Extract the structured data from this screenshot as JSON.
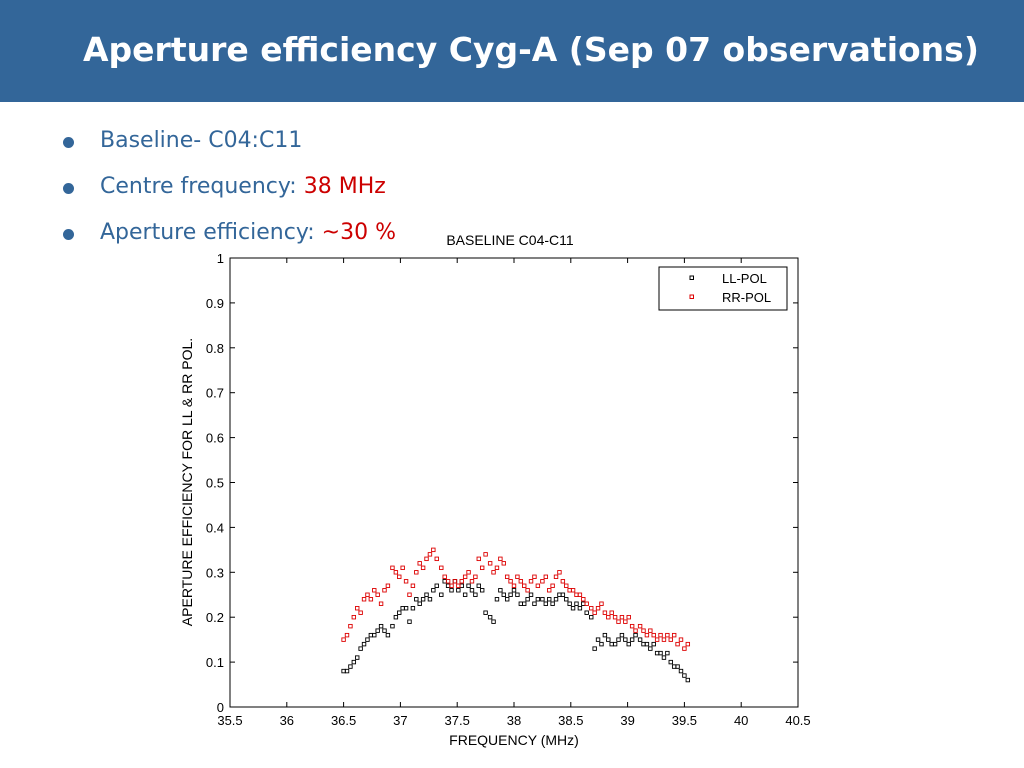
{
  "slide": {
    "title": "Aperture efficiency Cyg-A (Sep 07 observations)",
    "bullets": [
      {
        "label": "Baseline- C04:C11",
        "value": ""
      },
      {
        "label": "Centre frequency: ",
        "value": "38 MHz"
      },
      {
        "label": "Aperture efficiency: ",
        "value": "~30 %"
      }
    ]
  },
  "colors": {
    "header": "#336699",
    "text": "#336699",
    "highlight": "#cc0000",
    "ll": "#000000",
    "rr": "#dd0000"
  },
  "chart_data": {
    "type": "scatter",
    "title": "BASELINE C04-C11",
    "xlabel": "FREQUENCY (MHz)",
    "ylabel": "APERTURE EFFICIENCY FOR LL & RR POL.",
    "xlim": [
      35.5,
      40.5
    ],
    "ylim": [
      0,
      1
    ],
    "xticks": [
      35.5,
      36,
      36.5,
      37,
      37.5,
      38,
      38.5,
      39,
      39.5,
      40,
      40.5
    ],
    "yticks": [
      0,
      0.1,
      0.2,
      0.3,
      0.4,
      0.5,
      0.6,
      0.7,
      0.8,
      0.9,
      1
    ],
    "grid": false,
    "legend_position": "top-right",
    "series": [
      {
        "name": "LL-POL",
        "x": [
          36.5,
          36.53,
          36.56,
          36.59,
          36.62,
          36.65,
          36.68,
          36.71,
          36.74,
          36.77,
          36.8,
          36.83,
          36.86,
          36.89,
          36.93,
          36.96,
          36.99,
          37.02,
          37.05,
          37.08,
          37.11,
          37.14,
          37.17,
          37.2,
          37.23,
          37.26,
          37.29,
          37.32,
          37.36,
          37.39,
          37.42,
          37.45,
          37.48,
          37.51,
          37.54,
          37.57,
          37.6,
          37.63,
          37.66,
          37.69,
          37.72,
          37.75,
          37.79,
          37.82,
          37.85,
          37.88,
          37.91,
          37.94,
          37.97,
          38.0,
          38.03,
          38.06,
          38.09,
          38.12,
          38.15,
          38.18,
          38.21,
          38.25,
          38.28,
          38.31,
          38.34,
          38.37,
          38.4,
          38.43,
          38.46,
          38.49,
          38.52,
          38.55,
          38.58,
          38.61,
          38.64,
          38.68,
          38.71,
          38.74,
          38.77,
          38.8,
          38.83,
          38.86,
          38.89,
          38.92,
          38.95,
          38.98,
          39.01,
          39.04,
          39.07,
          39.11,
          39.14,
          39.17,
          39.2,
          39.23,
          39.26,
          39.29,
          39.32,
          39.35,
          39.38,
          39.41,
          39.44,
          39.47,
          39.5,
          39.53
        ],
        "y": [
          0.08,
          0.08,
          0.09,
          0.1,
          0.11,
          0.13,
          0.14,
          0.15,
          0.16,
          0.16,
          0.17,
          0.18,
          0.17,
          0.16,
          0.18,
          0.2,
          0.21,
          0.22,
          0.22,
          0.19,
          0.22,
          0.24,
          0.23,
          0.24,
          0.25,
          0.24,
          0.26,
          0.27,
          0.25,
          0.28,
          0.27,
          0.26,
          0.28,
          0.26,
          0.27,
          0.25,
          0.27,
          0.26,
          0.25,
          0.27,
          0.26,
          0.21,
          0.2,
          0.19,
          0.24,
          0.26,
          0.25,
          0.24,
          0.25,
          0.26,
          0.25,
          0.23,
          0.23,
          0.24,
          0.25,
          0.23,
          0.24,
          0.24,
          0.23,
          0.24,
          0.23,
          0.24,
          0.25,
          0.25,
          0.24,
          0.23,
          0.22,
          0.23,
          0.22,
          0.23,
          0.21,
          0.2,
          0.13,
          0.15,
          0.14,
          0.16,
          0.15,
          0.14,
          0.14,
          0.15,
          0.16,
          0.15,
          0.14,
          0.15,
          0.16,
          0.15,
          0.14,
          0.14,
          0.13,
          0.14,
          0.12,
          0.12,
          0.11,
          0.12,
          0.1,
          0.09,
          0.09,
          0.08,
          0.07,
          0.06
        ]
      },
      {
        "name": "RR-POL",
        "x": [
          36.5,
          36.53,
          36.56,
          36.59,
          36.62,
          36.65,
          36.68,
          36.71,
          36.74,
          36.77,
          36.8,
          36.83,
          36.86,
          36.89,
          36.93,
          36.96,
          36.99,
          37.02,
          37.05,
          37.08,
          37.11,
          37.14,
          37.17,
          37.2,
          37.23,
          37.26,
          37.29,
          37.32,
          37.36,
          37.39,
          37.42,
          37.45,
          37.48,
          37.51,
          37.54,
          37.57,
          37.6,
          37.63,
          37.66,
          37.69,
          37.72,
          37.75,
          37.79,
          37.82,
          37.85,
          37.88,
          37.91,
          37.94,
          37.97,
          38.0,
          38.03,
          38.06,
          38.09,
          38.12,
          38.15,
          38.18,
          38.21,
          38.25,
          38.28,
          38.31,
          38.34,
          38.37,
          38.4,
          38.43,
          38.46,
          38.49,
          38.52,
          38.55,
          38.58,
          38.61,
          38.64,
          38.68,
          38.71,
          38.74,
          38.77,
          38.8,
          38.83,
          38.86,
          38.89,
          38.92,
          38.95,
          38.98,
          39.01,
          39.04,
          39.07,
          39.11,
          39.14,
          39.17,
          39.2,
          39.23,
          39.26,
          39.29,
          39.32,
          39.35,
          39.38,
          39.41,
          39.44,
          39.47,
          39.5,
          39.53
        ],
        "y": [
          0.15,
          0.16,
          0.18,
          0.2,
          0.22,
          0.21,
          0.24,
          0.25,
          0.24,
          0.26,
          0.25,
          0.23,
          0.26,
          0.27,
          0.31,
          0.3,
          0.29,
          0.31,
          0.28,
          0.25,
          0.27,
          0.3,
          0.32,
          0.31,
          0.33,
          0.34,
          0.35,
          0.33,
          0.31,
          0.29,
          0.28,
          0.27,
          0.28,
          0.27,
          0.28,
          0.29,
          0.3,
          0.28,
          0.29,
          0.33,
          0.31,
          0.34,
          0.32,
          0.3,
          0.31,
          0.33,
          0.32,
          0.29,
          0.28,
          0.27,
          0.29,
          0.28,
          0.27,
          0.26,
          0.28,
          0.29,
          0.27,
          0.28,
          0.29,
          0.26,
          0.27,
          0.29,
          0.3,
          0.28,
          0.27,
          0.26,
          0.26,
          0.25,
          0.25,
          0.24,
          0.23,
          0.22,
          0.21,
          0.22,
          0.23,
          0.21,
          0.2,
          0.21,
          0.2,
          0.19,
          0.2,
          0.19,
          0.2,
          0.18,
          0.17,
          0.18,
          0.17,
          0.16,
          0.17,
          0.16,
          0.15,
          0.16,
          0.15,
          0.16,
          0.15,
          0.16,
          0.14,
          0.15,
          0.13,
          0.14
        ]
      }
    ]
  }
}
